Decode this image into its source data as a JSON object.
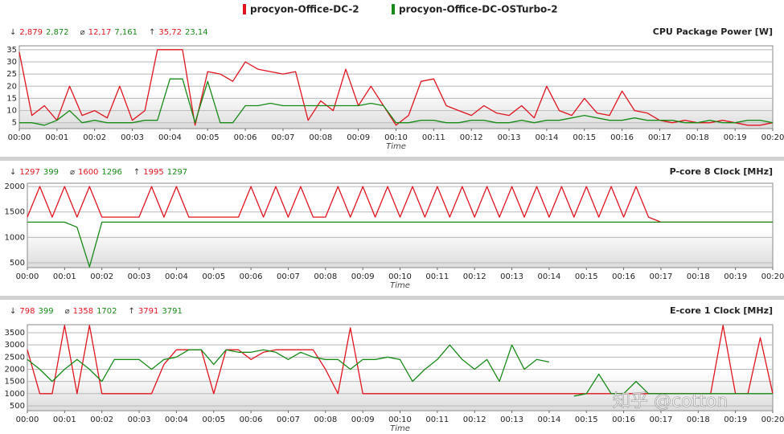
{
  "legend": {
    "series": [
      {
        "name": "procyon-Office-DC-2",
        "color": "#e0141e"
      },
      {
        "name": "procyon-Office-DC-OSTurbo-2",
        "color": "#178a17"
      }
    ]
  },
  "watermark": "知乎 @cotton",
  "chart_data": [
    {
      "type": "line",
      "title": "CPU Package Power [W]",
      "x_label": "Time",
      "stats": [
        {
          "symbol": "↓",
          "values": [
            "2,879",
            "2,872"
          ]
        },
        {
          "symbol": "⌀",
          "values": [
            "12,17",
            "7,161"
          ]
        },
        {
          "symbol": "↑",
          "values": [
            "35,72",
            "23,14"
          ]
        }
      ],
      "x": [
        0,
        20,
        40,
        60,
        80,
        100,
        120,
        140,
        160,
        180,
        200,
        220,
        240,
        260,
        280,
        300,
        320,
        340,
        360,
        380,
        400,
        420,
        440,
        460,
        480,
        500,
        520,
        540,
        560,
        580,
        600,
        620,
        640,
        660,
        680,
        700,
        720,
        740,
        760,
        780,
        800,
        820,
        840,
        860,
        880,
        900,
        920,
        940,
        960,
        980,
        1000,
        1020,
        1040,
        1060,
        1080,
        1100,
        1120,
        1140,
        1160,
        1180,
        1200
      ],
      "xlim": [
        0,
        1200
      ],
      "xticks": [
        {
          "value": 0,
          "label": "00:00"
        },
        {
          "value": 60,
          "label": "00:01"
        },
        {
          "value": 120,
          "label": "00:02"
        },
        {
          "value": 180,
          "label": "00:03"
        },
        {
          "value": 240,
          "label": "00:04"
        },
        {
          "value": 300,
          "label": "00:05"
        },
        {
          "value": 360,
          "label": "00:06"
        },
        {
          "value": 420,
          "label": "00:07"
        },
        {
          "value": 480,
          "label": "00:08"
        },
        {
          "value": 540,
          "label": "00:09"
        },
        {
          "value": 600,
          "label": "00:10"
        },
        {
          "value": 660,
          "label": "00:11"
        },
        {
          "value": 720,
          "label": "00:12"
        },
        {
          "value": 780,
          "label": "00:13"
        },
        {
          "value": 840,
          "label": "00:14"
        },
        {
          "value": 900,
          "label": "00:15"
        },
        {
          "value": 960,
          "label": "00:16"
        },
        {
          "value": 1020,
          "label": "00:17"
        },
        {
          "value": 1080,
          "label": "00:18"
        },
        {
          "value": 1140,
          "label": "00:19"
        },
        {
          "value": 1200,
          "label": "00:20"
        }
      ],
      "ylim": [
        2.6,
        36.6
      ],
      "yticks": [
        5,
        10,
        15,
        20,
        25,
        30,
        35
      ],
      "grid": true,
      "series": [
        {
          "name": "procyon-Office-DC-2",
          "color": "#e0141e",
          "values": [
            34,
            8,
            12,
            6,
            20,
            8,
            10,
            7,
            20,
            6,
            10,
            35,
            35,
            35,
            4,
            26,
            25,
            22,
            30,
            27,
            26,
            25,
            26,
            6,
            14,
            10,
            27,
            12,
            20,
            12,
            4,
            8,
            22,
            23,
            12,
            10,
            8,
            12,
            9,
            8,
            12,
            7,
            20,
            10,
            8,
            15,
            9,
            8,
            18,
            10,
            9,
            6,
            5,
            6,
            5,
            5,
            6,
            5,
            4,
            4,
            5
          ]
        },
        {
          "name": "procyon-Office-DC-OSTurbo-2",
          "color": "#178a17",
          "values": [
            5,
            5,
            4,
            6,
            10,
            5,
            6,
            5,
            5,
            5,
            6,
            6,
            23,
            23,
            5,
            22,
            5,
            5,
            12,
            12,
            13,
            12,
            12,
            12,
            12,
            12,
            12,
            12,
            13,
            12,
            5,
            5,
            6,
            6,
            5,
            5,
            6,
            6,
            5,
            5,
            6,
            5,
            6,
            6,
            7,
            8,
            7,
            6,
            6,
            7,
            6,
            6,
            6,
            5,
            5,
            6,
            5,
            5,
            6,
            6,
            5
          ]
        }
      ]
    },
    {
      "type": "line",
      "title": "P-core 8 Clock [MHz]",
      "x_label": "Time",
      "stats": [
        {
          "symbol": "↓",
          "values": [
            "1297",
            "399"
          ]
        },
        {
          "symbol": "⌀",
          "values": [
            "1600",
            "1296"
          ]
        },
        {
          "symbol": "↑",
          "values": [
            "1995",
            "1297"
          ]
        }
      ],
      "x": [
        0,
        20,
        40,
        60,
        80,
        100,
        120,
        140,
        160,
        180,
        200,
        220,
        240,
        260,
        280,
        300,
        320,
        340,
        360,
        380,
        400,
        420,
        440,
        460,
        480,
        500,
        520,
        540,
        560,
        580,
        600,
        620,
        640,
        660,
        680,
        700,
        720,
        740,
        760,
        780,
        800,
        820,
        840,
        860,
        880,
        900,
        920,
        940,
        960,
        980,
        1000,
        1020,
        1040,
        1060,
        1080,
        1100,
        1120,
        1140,
        1160,
        1180,
        1200
      ],
      "xlim": [
        0,
        1200
      ],
      "xticks": [
        {
          "value": 0,
          "label": "00:00"
        },
        {
          "value": 60,
          "label": "00:01"
        },
        {
          "value": 120,
          "label": "00:02"
        },
        {
          "value": 180,
          "label": "00:03"
        },
        {
          "value": 240,
          "label": "00:04"
        },
        {
          "value": 300,
          "label": "00:05"
        },
        {
          "value": 360,
          "label": "00:06"
        },
        {
          "value": 420,
          "label": "00:07"
        },
        {
          "value": 480,
          "label": "00:08"
        },
        {
          "value": 540,
          "label": "00:09"
        },
        {
          "value": 600,
          "label": "00:10"
        },
        {
          "value": 660,
          "label": "00:11"
        },
        {
          "value": 720,
          "label": "00:12"
        },
        {
          "value": 780,
          "label": "00:13"
        },
        {
          "value": 840,
          "label": "00:14"
        },
        {
          "value": 900,
          "label": "00:15"
        },
        {
          "value": 960,
          "label": "00:16"
        },
        {
          "value": 1020,
          "label": "00:17"
        },
        {
          "value": 1080,
          "label": "00:18"
        },
        {
          "value": 1140,
          "label": "00:19"
        },
        {
          "value": 1200,
          "label": "00:20"
        }
      ],
      "ylim": [
        405,
        2065
      ],
      "yticks": [
        500,
        1000,
        1500,
        2000
      ],
      "grid": true,
      "series": [
        {
          "name": "procyon-Office-DC-2",
          "color": "#e0141e",
          "values": [
            1400,
            2000,
            1400,
            2000,
            1400,
            2000,
            1400,
            1400,
            1400,
            1400,
            2000,
            1400,
            2000,
            1400,
            1400,
            1400,
            1400,
            1400,
            2000,
            1400,
            2000,
            1400,
            2000,
            1400,
            1400,
            2000,
            1400,
            2000,
            1400,
            2000,
            1400,
            2000,
            1400,
            2000,
            1400,
            2000,
            1400,
            2000,
            1400,
            2000,
            1400,
            2000,
            1400,
            2000,
            1400,
            2000,
            1400,
            2000,
            1400,
            2000,
            1400,
            1300,
            1300,
            1300,
            1300,
            1300,
            1300,
            1300,
            1300,
            1300,
            1300
          ]
        },
        {
          "name": "procyon-Office-DC-OSTurbo-2",
          "color": "#178a17",
          "values": [
            1300,
            1300,
            1300,
            1300,
            1200,
            420,
            1300,
            1300,
            1300,
            1300,
            1300,
            1300,
            1300,
            1300,
            1300,
            1300,
            1300,
            1300,
            1300,
            1300,
            1300,
            1300,
            1300,
            1300,
            1300,
            1300,
            1300,
            1300,
            1300,
            1300,
            1300,
            1300,
            1300,
            1300,
            1300,
            1300,
            1300,
            1300,
            1300,
            1300,
            1300,
            1300,
            1300,
            1300,
            1300,
            1300,
            1300,
            1300,
            1300,
            1300,
            1300,
            1300,
            1300,
            1300,
            1300,
            1300,
            1300,
            1300,
            1300,
            1300,
            1300
          ]
        }
      ]
    },
    {
      "type": "line",
      "title": "E-core 1 Clock [MHz]",
      "x_label": "Time",
      "stats": [
        {
          "symbol": "↓",
          "values": [
            "798",
            "399"
          ]
        },
        {
          "symbol": "⌀",
          "values": [
            "1358",
            "1702"
          ]
        },
        {
          "symbol": "↑",
          "values": [
            "3791",
            "3791"
          ]
        }
      ],
      "x": [
        0,
        20,
        40,
        60,
        80,
        100,
        120,
        140,
        160,
        180,
        200,
        220,
        240,
        260,
        280,
        300,
        320,
        340,
        360,
        380,
        400,
        420,
        440,
        460,
        480,
        500,
        520,
        540,
        560,
        580,
        600,
        620,
        640,
        660,
        680,
        700,
        720,
        740,
        760,
        780,
        800,
        820,
        840,
        860,
        880,
        900,
        920,
        940,
        960,
        980,
        1000,
        1020,
        1040,
        1060,
        1080,
        1100,
        1120,
        1140,
        1160,
        1180,
        1200
      ],
      "xlim": [
        0,
        1200
      ],
      "xticks": [
        {
          "value": 0,
          "label": "00:00"
        },
        {
          "value": 60,
          "label": "00:01"
        },
        {
          "value": 120,
          "label": "00:02"
        },
        {
          "value": 180,
          "label": "00:03"
        },
        {
          "value": 240,
          "label": "00:04"
        },
        {
          "value": 300,
          "label": "00:05"
        },
        {
          "value": 360,
          "label": "00:06"
        },
        {
          "value": 420,
          "label": "00:07"
        },
        {
          "value": 480,
          "label": "00:08"
        },
        {
          "value": 540,
          "label": "00:09"
        },
        {
          "value": 600,
          "label": "00:10"
        },
        {
          "value": 660,
          "label": "00:11"
        },
        {
          "value": 720,
          "label": "00:12"
        },
        {
          "value": 780,
          "label": "00:13"
        },
        {
          "value": 840,
          "label": "00:14"
        },
        {
          "value": 900,
          "label": "00:15"
        },
        {
          "value": 960,
          "label": "00:16"
        },
        {
          "value": 1020,
          "label": "00:17"
        },
        {
          "value": 1080,
          "label": "00:18"
        },
        {
          "value": 1140,
          "label": "00:19"
        },
        {
          "value": 1200,
          "label": "00:20"
        }
      ],
      "ylim": [
        300,
        3830
      ],
      "yticks": [
        500,
        1000,
        1500,
        2000,
        2500,
        3000,
        3500
      ],
      "grid": true,
      "series": [
        {
          "name": "procyon-Office-DC-2",
          "color": "#e0141e",
          "values": [
            2800,
            1000,
            1000,
            3800,
            1000,
            3800,
            1000,
            1000,
            1000,
            1000,
            1000,
            2200,
            2800,
            2800,
            2800,
            1000,
            2800,
            2800,
            2400,
            2700,
            2800,
            2800,
            2800,
            2800,
            2000,
            1000,
            3700,
            1000,
            1000,
            1000,
            1000,
            1000,
            1000,
            1000,
            1000,
            1000,
            1000,
            1000,
            1000,
            1000,
            1000,
            1000,
            1000,
            1000,
            1000,
            1000,
            1000,
            1000,
            1000,
            1000,
            1000,
            1000,
            1000,
            1000,
            1000,
            1000,
            3800,
            1000,
            1000,
            3300,
            1000
          ]
        },
        {
          "name": "procyon-Office-DC-OSTurbo-2",
          "color": "#178a17",
          "values": [
            2400,
            2000,
            1500,
            2000,
            2400,
            2000,
            1500,
            2400,
            2400,
            2400,
            2000,
            2400,
            2500,
            2800,
            2800,
            2200,
            2800,
            2700,
            2700,
            2800,
            2700,
            2400,
            2700,
            2500,
            2400,
            2400,
            2000,
            2400,
            2400,
            2500,
            2400,
            1500,
            2000,
            2400,
            3000,
            2400,
            2000,
            2400,
            1500,
            3000,
            2000,
            2400,
            2300,
            null,
            900,
            1000,
            1800,
            1000,
            1000,
            1500,
            1000,
            1000,
            1000,
            1000,
            1000,
            1000,
            1000,
            1000,
            1000,
            1000,
            1000
          ]
        }
      ]
    }
  ]
}
